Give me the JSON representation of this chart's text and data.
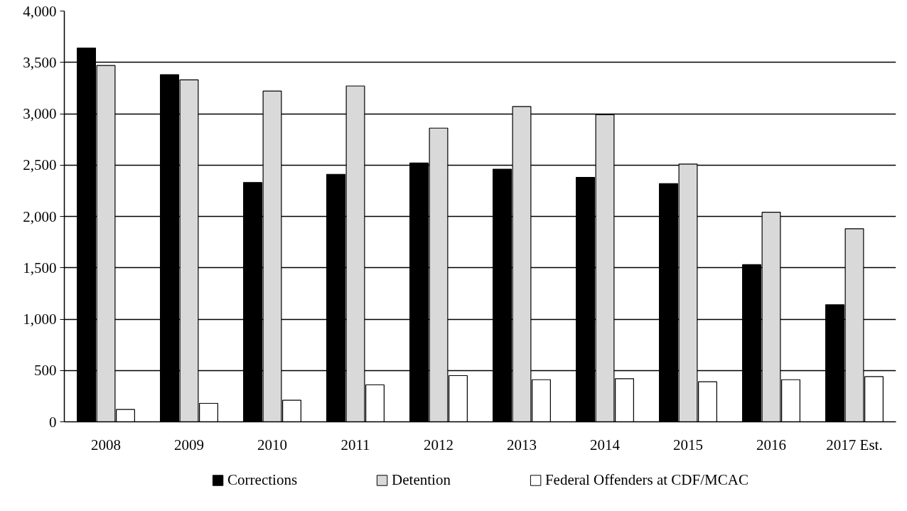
{
  "chart_data": {
    "type": "bar",
    "categories": [
      "2008",
      "2009",
      "2010",
      "2011",
      "2012",
      "2013",
      "2014",
      "2015",
      "2016",
      "2017 Est."
    ],
    "series": [
      {
        "name": "Corrections",
        "color": "#000000",
        "values": [
          3640,
          3380,
          2330,
          2410,
          2520,
          2460,
          2380,
          2320,
          1530,
          1140
        ]
      },
      {
        "name": "Detention",
        "color": "#d9d9d9",
        "values": [
          3470,
          3330,
          3220,
          3270,
          2860,
          3070,
          2990,
          2510,
          2040,
          1880
        ]
      },
      {
        "name": "Federal Offenders at CDF/MCAC",
        "color": "#ffffff",
        "values": [
          120,
          180,
          210,
          360,
          450,
          410,
          420,
          390,
          410,
          440
        ]
      }
    ],
    "ylim": [
      0,
      4000
    ],
    "yticks": [
      {
        "value": 0,
        "label": "0"
      },
      {
        "value": 500,
        "label": "500"
      },
      {
        "value": 1000,
        "label": "1,000"
      },
      {
        "value": 1500,
        "label": "1,500"
      },
      {
        "value": 2000,
        "label": "2,000"
      },
      {
        "value": 2500,
        "label": "2,500"
      },
      {
        "value": 3000,
        "label": "3,000"
      },
      {
        "value": 3500,
        "label": "3,500"
      },
      {
        "value": 4000,
        "label": "4,000"
      }
    ],
    "grid": "y",
    "legend": "bottom"
  }
}
